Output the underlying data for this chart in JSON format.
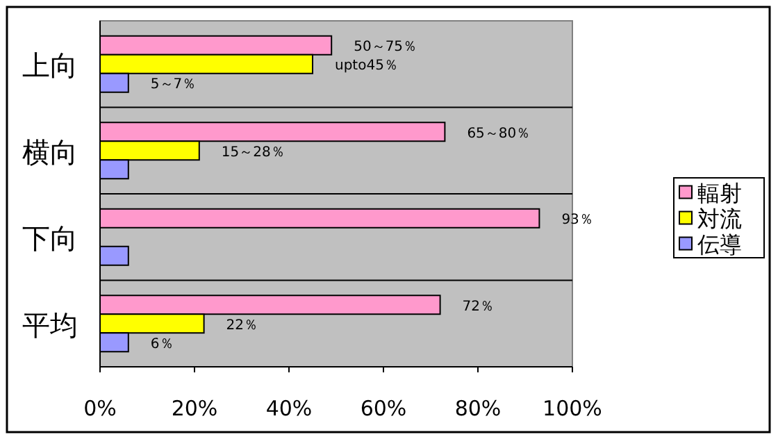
{
  "chart_data": {
    "type": "bar",
    "orientation": "horizontal",
    "categories": [
      "上向",
      "横向",
      "下向",
      "平均"
    ],
    "series": [
      {
        "name": "輻射",
        "color": "#ff99cc",
        "values": [
          49,
          73,
          93,
          72
        ],
        "value_labels": [
          null,
          null,
          "93％",
          "72％"
        ]
      },
      {
        "name": "対流",
        "color": "#ffff00",
        "values": [
          45,
          21,
          null,
          22
        ],
        "value_labels": [
          null,
          null,
          null,
          "22％"
        ]
      },
      {
        "name": "伝導",
        "color": "#9999ff",
        "values": [
          6,
          6,
          6,
          6
        ],
        "value_labels": [
          null,
          null,
          null,
          "6％"
        ]
      }
    ],
    "annotations": [
      "50～75％",
      "upto45％",
      "5～7％",
      "65～80％",
      "15～28％"
    ],
    "xlim": [
      0,
      100
    ],
    "xticks": [
      {
        "value": 0,
        "label": "0%"
      },
      {
        "value": 20,
        "label": "20%"
      },
      {
        "value": 40,
        "label": "40%"
      },
      {
        "value": 60,
        "label": "60%"
      },
      {
        "value": 80,
        "label": "80%"
      },
      {
        "value": 100,
        "label": "100%"
      }
    ],
    "grid": "y",
    "legend": "right"
  }
}
